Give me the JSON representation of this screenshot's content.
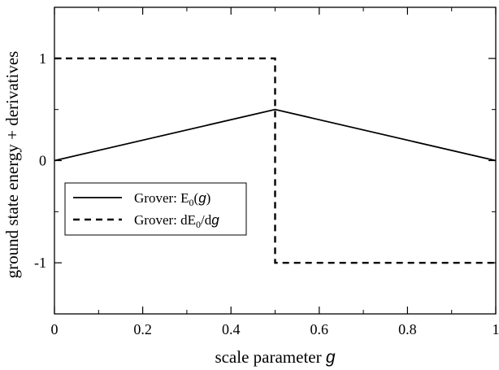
{
  "chart_data": {
    "type": "line",
    "xlabel": {
      "text": "scale parameter ",
      "var": "g"
    },
    "ylabel": "ground state energy + derivatives",
    "xlim": [
      0,
      1
    ],
    "ylim": [
      -1.5,
      1.5
    ],
    "xticks": [
      0,
      0.2,
      0.4,
      0.6,
      0.8,
      1
    ],
    "xtick_labels": [
      "0",
      "0.2",
      "0.4",
      "0.6",
      "0.8",
      "1"
    ],
    "yticks": [
      -1,
      0,
      1
    ],
    "ytick_labels": [
      "-1",
      "0",
      "1"
    ],
    "grid": false,
    "legend": {
      "position": "center-left",
      "items": [
        {
          "pre": "Grover: E",
          "sub": "0",
          "post": "(",
          "var": "g",
          "end": ")"
        },
        {
          "pre": "Grover: dE",
          "sub": "0",
          "post": "/d",
          "var": "g",
          "end": ""
        }
      ]
    },
    "series": [
      {
        "style": "solid",
        "color": "#000000",
        "x": [
          0,
          0.5,
          1
        ],
        "y": [
          0,
          0.5,
          0
        ]
      },
      {
        "style": "dashed",
        "color": "#000000",
        "x": [
          0,
          0.5,
          0.5,
          1
        ],
        "y": [
          1,
          1,
          -1,
          -1
        ]
      }
    ]
  }
}
